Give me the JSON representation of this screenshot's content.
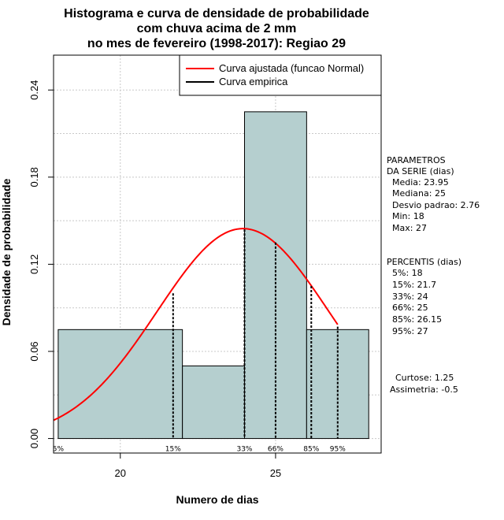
{
  "chart_data": {
    "type": "bar",
    "title_lines": [
      "Histograma e curva de densidade de probabilidade",
      "com chuva acima de 2 mm",
      "no mes de fevereiro (1998-2017): Regiao 29"
    ],
    "xlabel": "Numero de dias",
    "ylabel": "Densidade de probabilidade",
    "xlim": [
      17.85,
      28.4
    ],
    "ylim": [
      -0.01,
      0.264
    ],
    "x_ticks": [
      20,
      25
    ],
    "x_tick_labels": [
      "20",
      "25"
    ],
    "y_ticks": [
      0.0,
      0.06,
      0.12,
      0.18,
      0.24
    ],
    "y_tick_labels": [
      "0.00",
      "0.06",
      "0.12",
      "0.18",
      "0.24"
    ],
    "grid": true,
    "histogram": {
      "bins": [
        {
          "start": 18,
          "end": 22,
          "density": 0.075
        },
        {
          "start": 22,
          "end": 24,
          "density": 0.05
        },
        {
          "start": 24,
          "end": 26,
          "density": 0.225
        },
        {
          "start": 26,
          "end": 28,
          "density": 0.075
        }
      ],
      "fill": "#b5cfcf"
    },
    "normal_curve": {
      "mean": 23.95,
      "sd": 2.76,
      "x_start": 17.85,
      "x_end": 27.0,
      "color": "#ff0000"
    },
    "percentile_lines": [
      {
        "label": "5%",
        "x": 18.0,
        "y": 0.0
      },
      {
        "label": "15%",
        "x": 21.7,
        "y": 0.1
      },
      {
        "label": "33%",
        "x": 24.0,
        "y": 0.144
      },
      {
        "label": "66%",
        "x": 25.0,
        "y": 0.135
      },
      {
        "label": "85%",
        "x": 26.15,
        "y": 0.105
      },
      {
        "label": "95%",
        "x": 27.0,
        "y": 0.077
      }
    ],
    "legend": {
      "position": "top-right",
      "entries": [
        {
          "label": "Curva ajustada (funcao Normal)",
          "color": "#ff0000"
        },
        {
          "label": "Curva empirica",
          "color": "#000000"
        }
      ]
    },
    "side_panel": {
      "parametros_title_1": "PARAMETROS",
      "parametros_title_2": "DA SERIE (dias)",
      "params": [
        "Media: 23.95",
        "Mediana: 25",
        "Desvio padrao: 2.76",
        "Min: 18",
        "Max: 27"
      ],
      "percentis_title": "PERCENTIS (dias)",
      "percentis": [
        "5%: 18",
        "15%: 21.7",
        "33%: 24",
        "66%: 25",
        "85%: 26.15",
        "95%: 27"
      ],
      "curtose": "Curtose: 1.25",
      "assimetria": "Assimetria: -0.5"
    }
  }
}
